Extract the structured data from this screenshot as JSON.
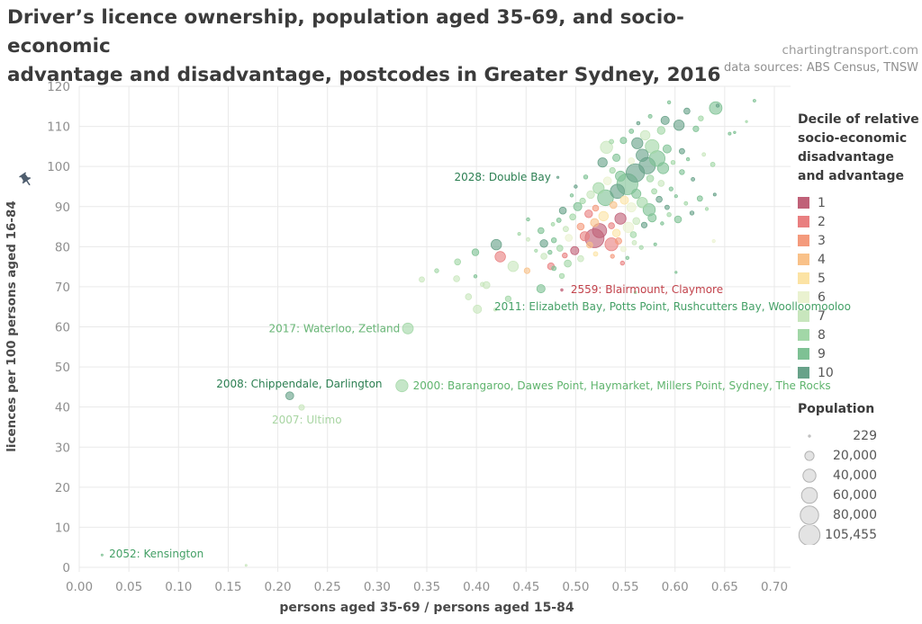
{
  "header": {
    "title": "Driver’s licence ownership, population aged 35-69, and socio-economic\nadvantage and disadvantage, postcodes in Greater Sydney, 2016",
    "brand": "chartingtransport.com",
    "source": "data sources: ABS Census, TNSW"
  },
  "chart_data": {
    "type": "scatter",
    "title": "Driver’s licence ownership, population aged 35-69, and socio-economic advantage and disadvantage, postcodes in Greater Sydney, 2016",
    "xlabel": "persons aged 35-69 / persons aged 15-84",
    "ylabel": "licences per 100 persons aged 16-84",
    "xlim": [
      0,
      0.7
    ],
    "ylim": [
      0,
      120
    ],
    "x_ticks": [
      "0.00",
      "0.05",
      "0.10",
      "0.15",
      "0.20",
      "0.25",
      "0.30",
      "0.35",
      "0.40",
      "0.45",
      "0.50",
      "0.55",
      "0.60",
      "0.65",
      "0.70"
    ],
    "y_ticks": [
      "0",
      "10",
      "20",
      "30",
      "40",
      "50",
      "60",
      "70",
      "80",
      "90",
      "100",
      "110",
      "120"
    ],
    "grid": true,
    "legend_position": "right",
    "decile_legend": {
      "title": "Decile of relative\nsocio-economic\ndisadvantage\nand advantage",
      "items": [
        {
          "label": "1",
          "color": "#c06178"
        },
        {
          "label": "2",
          "color": "#e97f80"
        },
        {
          "label": "3",
          "color": "#f49a7c"
        },
        {
          "label": "4",
          "color": "#f9c189"
        },
        {
          "label": "5",
          "color": "#fce3a4"
        },
        {
          "label": "6",
          "color": "#eaf2d0"
        },
        {
          "label": "7",
          "color": "#c8e6bd"
        },
        {
          "label": "8",
          "color": "#a2d7a7"
        },
        {
          "label": "9",
          "color": "#7ec194"
        },
        {
          "label": "10",
          "color": "#68a289"
        }
      ]
    },
    "size_legend": {
      "title": "Population",
      "items": [
        {
          "label": "229",
          "pop": 229
        },
        {
          "label": "20,000",
          "pop": 20000
        },
        {
          "label": "40,000",
          "pop": 40000
        },
        {
          "label": "60,000",
          "pop": 60000
        },
        {
          "label": "80,000",
          "pop": 80000
        },
        {
          "label": "105,455",
          "pop": 105455
        }
      ]
    },
    "points_format": [
      "x_ratio_35_69_over_15_84",
      "licences_per_100",
      "decile",
      "population"
    ],
    "points": [
      [
        0.68,
        116.4,
        9,
        1800
      ],
      [
        0.643,
        115.2,
        10,
        2400
      ],
      [
        0.594,
        116.0,
        9,
        2600
      ],
      [
        0.612,
        113.8,
        10,
        9000
      ],
      [
        0.641,
        114.6,
        9,
        38000
      ],
      [
        0.626,
        112.0,
        8,
        6000
      ],
      [
        0.59,
        111.5,
        10,
        16000
      ],
      [
        0.575,
        112.5,
        9,
        3500
      ],
      [
        0.604,
        110.3,
        10,
        26000
      ],
      [
        0.621,
        109.4,
        9,
        8000
      ],
      [
        0.586,
        109.0,
        8,
        14000
      ],
      [
        0.563,
        110.8,
        10,
        2800
      ],
      [
        0.655,
        108.2,
        9,
        2000
      ],
      [
        0.57,
        107.8,
        7,
        22000
      ],
      [
        0.556,
        108.8,
        9,
        5000
      ],
      [
        0.672,
        111.2,
        8,
        1100
      ],
      [
        0.548,
        106.5,
        9,
        10000
      ],
      [
        0.562,
        105.8,
        10,
        30000
      ],
      [
        0.577,
        105.0,
        8,
        45000
      ],
      [
        0.592,
        104.4,
        9,
        16000
      ],
      [
        0.607,
        103.8,
        10,
        7000
      ],
      [
        0.531,
        104.8,
        7,
        36000
      ],
      [
        0.536,
        106.2,
        8,
        5000
      ],
      [
        0.567,
        102.8,
        10,
        36000
      ],
      [
        0.582,
        102.0,
        9,
        58000
      ],
      [
        0.556,
        101.4,
        6,
        9000
      ],
      [
        0.541,
        102.2,
        9,
        13000
      ],
      [
        0.598,
        101.0,
        8,
        4000
      ],
      [
        0.613,
        101.8,
        9,
        2600
      ],
      [
        0.527,
        101.0,
        10,
        21000
      ],
      [
        0.572,
        100.2,
        10,
        64000
      ],
      [
        0.629,
        103.0,
        7,
        3000
      ],
      [
        0.638,
        100.5,
        8,
        5000
      ],
      [
        0.588,
        99.6,
        9,
        30000
      ],
      [
        0.537,
        99.0,
        8,
        8000
      ],
      [
        0.56,
        98.4,
        10,
        80000
      ],
      [
        0.545,
        97.6,
        9,
        24000
      ],
      [
        0.575,
        97.0,
        8,
        12000
      ],
      [
        0.607,
        98.6,
        9,
        6000
      ],
      [
        0.618,
        96.8,
        10,
        3200
      ],
      [
        0.532,
        96.4,
        6,
        15000
      ],
      [
        0.552,
        95.6,
        9,
        105455
      ],
      [
        0.51,
        97.4,
        9,
        4000
      ],
      [
        0.5,
        95.0,
        10,
        2400
      ],
      [
        0.586,
        95.8,
        7,
        9000
      ],
      [
        0.66,
        108.5,
        9,
        1300
      ],
      [
        0.523,
        94.6,
        8,
        30000
      ],
      [
        0.542,
        93.8,
        10,
        48000
      ],
      [
        0.561,
        93.2,
        9,
        20000
      ],
      [
        0.579,
        93.8,
        8,
        7000
      ],
      [
        0.596,
        94.4,
        9,
        3600
      ],
      [
        0.515,
        93.0,
        7,
        14000
      ],
      [
        0.53,
        92.2,
        9,
        60000
      ],
      [
        0.549,
        91.6,
        5,
        16000
      ],
      [
        0.567,
        91.0,
        8,
        26000
      ],
      [
        0.584,
        91.8,
        10,
        9000
      ],
      [
        0.601,
        92.6,
        9,
        2200
      ],
      [
        0.507,
        91.4,
        8,
        8000
      ],
      [
        0.496,
        92.8,
        9,
        2600
      ],
      [
        0.538,
        90.4,
        4,
        12000
      ],
      [
        0.556,
        89.8,
        6,
        20000
      ],
      [
        0.574,
        89.2,
        9,
        36000
      ],
      [
        0.592,
        89.8,
        10,
        5000
      ],
      [
        0.52,
        89.6,
        3,
        9000
      ],
      [
        0.502,
        90.0,
        9,
        16000
      ],
      [
        0.611,
        90.8,
        8,
        3000
      ],
      [
        0.625,
        92.0,
        9,
        7000
      ],
      [
        0.64,
        93.0,
        10,
        2000
      ],
      [
        0.487,
        89.0,
        10,
        12000
      ],
      [
        0.513,
        88.2,
        2,
        14000
      ],
      [
        0.528,
        87.6,
        5,
        22000
      ],
      [
        0.545,
        87.0,
        1,
        30000
      ],
      [
        0.561,
        86.4,
        7,
        12000
      ],
      [
        0.577,
        87.2,
        9,
        16000
      ],
      [
        0.594,
        88.0,
        8,
        4000
      ],
      [
        0.497,
        87.4,
        8,
        9000
      ],
      [
        0.483,
        86.6,
        9,
        5000
      ],
      [
        0.519,
        86.0,
        4,
        16000
      ],
      [
        0.536,
        85.2,
        2,
        9000
      ],
      [
        0.553,
        84.8,
        6,
        26000
      ],
      [
        0.569,
        85.4,
        10,
        8000
      ],
      [
        0.587,
        85.8,
        9,
        2600
      ],
      [
        0.505,
        85.0,
        3,
        12000
      ],
      [
        0.49,
        84.4,
        7,
        7000
      ],
      [
        0.524,
        84.0,
        1,
        48000
      ],
      [
        0.541,
        83.4,
        5,
        14000
      ],
      [
        0.558,
        83.0,
        8,
        9000
      ],
      [
        0.603,
        86.8,
        9,
        12000
      ],
      [
        0.617,
        88.4,
        10,
        4000
      ],
      [
        0.632,
        89.4,
        8,
        2200
      ],
      [
        0.477,
        85.6,
        8,
        3000
      ],
      [
        0.465,
        84.0,
        9,
        9000
      ],
      [
        0.452,
        86.8,
        9,
        2600
      ],
      [
        0.443,
        83.2,
        8,
        2000
      ],
      [
        0.519,
        82.1,
        1,
        85000
      ],
      [
        0.509,
        82.6,
        2,
        20000
      ],
      [
        0.543,
        81.4,
        3,
        10000
      ],
      [
        0.559,
        81.0,
        7,
        5000
      ],
      [
        0.493,
        82.2,
        6,
        12000
      ],
      [
        0.478,
        81.6,
        9,
        6000
      ],
      [
        0.514,
        80.4,
        4,
        9000
      ],
      [
        0.536,
        80.6,
        2,
        40000
      ],
      [
        0.548,
        79.4,
        6,
        7000
      ],
      [
        0.499,
        79.0,
        1,
        16000
      ],
      [
        0.484,
        79.6,
        8,
        9000
      ],
      [
        0.468,
        80.8,
        10,
        14000
      ],
      [
        0.52,
        78.2,
        5,
        5000
      ],
      [
        0.537,
        77.6,
        3,
        3600
      ],
      [
        0.505,
        77.0,
        7,
        9000
      ],
      [
        0.489,
        77.8,
        2,
        6000
      ],
      [
        0.474,
        78.6,
        9,
        4000
      ],
      [
        0.552,
        77.2,
        9,
        2600
      ],
      [
        0.46,
        79.0,
        8,
        2200
      ],
      [
        0.452,
        81.8,
        7,
        3000
      ],
      [
        0.566,
        79.8,
        8,
        3600
      ],
      [
        0.58,
        80.6,
        9,
        2000
      ],
      [
        0.639,
        81.4,
        6,
        2200
      ],
      [
        0.547,
        75.9,
        2,
        4000
      ],
      [
        0.601,
        73.6,
        9,
        1100
      ],
      [
        0.56,
        68.6,
        8,
        1600
      ],
      [
        0.42,
        80.5,
        10,
        26000
      ],
      [
        0.424,
        77.5,
        2,
        26000
      ],
      [
        0.437,
        75.1,
        7,
        26000
      ],
      [
        0.399,
        78.6,
        9,
        11000
      ],
      [
        0.381,
        76.2,
        8,
        9000
      ],
      [
        0.36,
        74.0,
        8,
        4000
      ],
      [
        0.345,
        71.8,
        7,
        7000
      ],
      [
        0.399,
        72.6,
        9,
        2600
      ],
      [
        0.41,
        70.4,
        7,
        12000
      ],
      [
        0.38,
        72.0,
        7,
        9000
      ],
      [
        0.406,
        70.6,
        7,
        4000
      ],
      [
        0.392,
        67.5,
        7,
        9000
      ],
      [
        0.401,
        64.4,
        7,
        16000
      ],
      [
        0.451,
        74.0,
        4,
        8000
      ],
      [
        0.465,
        69.5,
        9,
        16000
      ],
      [
        0.475,
        75.1,
        2,
        11000
      ],
      [
        0.468,
        77.6,
        7,
        9000
      ],
      [
        0.486,
        72.7,
        8,
        6000
      ],
      [
        0.478,
        74.6,
        9,
        5000
      ],
      [
        0.492,
        75.8,
        8,
        12000
      ],
      [
        0.432,
        67.0,
        8,
        8000
      ],
      [
        0.419,
        64.3,
        7,
        2600
      ],
      [
        0.482,
        97.3,
        10,
        1200
      ],
      [
        0.486,
        69.2,
        1,
        1400
      ],
      [
        0.331,
        59.6,
        8,
        28000
      ],
      [
        0.212,
        42.8,
        10,
        15000
      ],
      [
        0.224,
        39.9,
        7,
        7600
      ],
      [
        0.325,
        45.3,
        8,
        35000
      ],
      [
        0.023,
        3.1,
        9,
        600
      ],
      [
        0.168,
        0.5,
        7,
        400
      ]
    ],
    "annotations": [
      {
        "text": "2028: Double Bay",
        "x": 0.475,
        "y": 97.4,
        "align": "end",
        "color": "#2c7f52"
      },
      {
        "text": "2559: Blairmount, Claymore",
        "x": 0.495,
        "y": 69.3,
        "align": "start",
        "color": "#c2424b"
      },
      {
        "text": "2011: Elizabeth Bay, Potts Point, Rushcutters Bay, Woolloomooloo",
        "x": 0.418,
        "y": 65.0,
        "align": "start",
        "color": "#44a066"
      },
      {
        "text": "2017: Waterloo, Zetland",
        "x": 0.323,
        "y": 59.5,
        "align": "end",
        "color": "#67b575"
      },
      {
        "text": "2008: Chippendale, Darlington",
        "x": 0.138,
        "y": 45.8,
        "align": "start",
        "color": "#2c7f52"
      },
      {
        "text": "2007: Ultimo",
        "x": 0.194,
        "y": 36.8,
        "align": "start",
        "color": "#a8d5a2"
      },
      {
        "text": "2000: Barangaroo, Dawes Point, Haymarket, Millers Point, Sydney, The Rocks",
        "x": 0.336,
        "y": 45.3,
        "align": "start",
        "color": "#5fb46d"
      },
      {
        "text": "2052: Kensington",
        "x": 0.03,
        "y": 3.4,
        "align": "start",
        "color": "#44a066"
      }
    ],
    "style": {
      "grid_color": "#e9e9e9",
      "tick_color": "#8f8f8f",
      "point_opacity": 0.62,
      "pop_legend_fill": "#d9d9d9",
      "pop_legend_stroke": "#b3b3b3",
      "pin_color": "#4e5d6e"
    }
  }
}
